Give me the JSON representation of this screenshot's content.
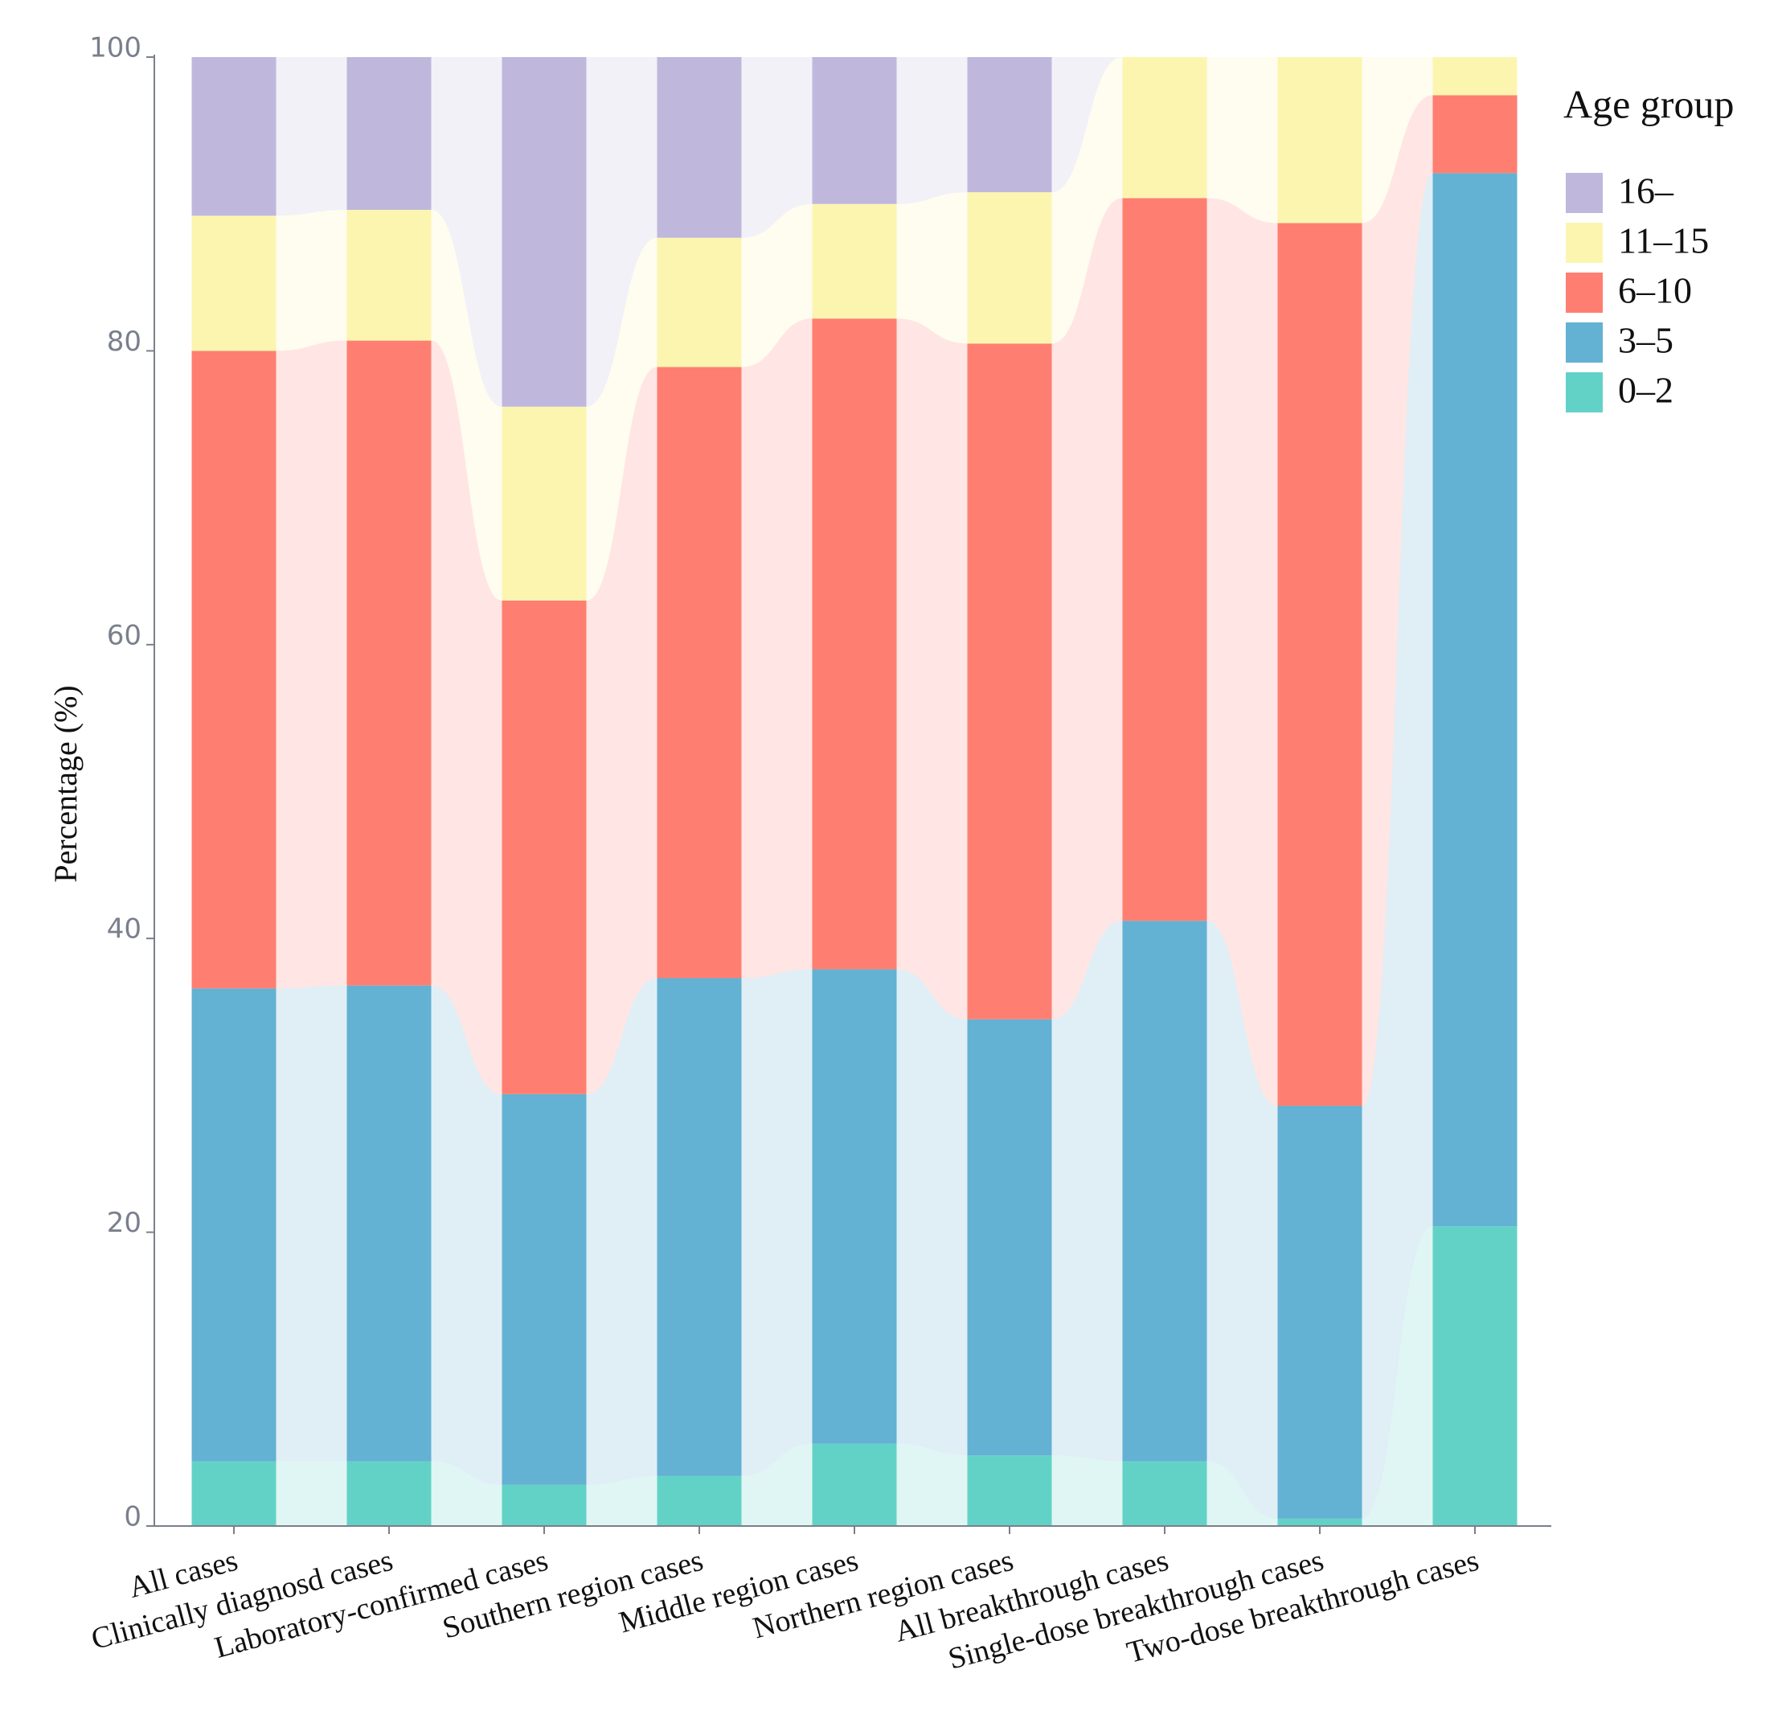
{
  "chart_data": {
    "type": "stacked_bar_flow",
    "y_label": "Percentage (%)",
    "legend_title": "Age group",
    "categories": [
      "All cases",
      "Clinically diagnosd cases",
      "Laboratory-confirmed cases",
      "Southern region cases",
      "Middle region cases",
      "Northern region cases",
      "All breakthrough cases",
      "Single-dose breakthrough cases",
      "Two-dose breakthrough cases"
    ],
    "series": [
      {
        "name": "0–2",
        "color": "#63d2c6",
        "values": [
          4.4,
          4.4,
          2.8,
          3.4,
          5.6,
          4.8,
          4.4,
          0.5,
          20.4
        ]
      },
      {
        "name": "3–5",
        "color": "#63b1d3",
        "values": [
          32.2,
          32.4,
          26.6,
          33.9,
          32.3,
          29.7,
          36.8,
          28.1,
          71.7
        ]
      },
      {
        "name": "6–10",
        "color": "#fe7f71",
        "values": [
          43.4,
          43.9,
          33.6,
          41.6,
          44.3,
          46.0,
          49.2,
          60.1,
          5.3
        ]
      },
      {
        "name": "11–15",
        "color": "#fcf5b0",
        "values": [
          9.2,
          8.9,
          13.2,
          8.8,
          7.8,
          10.3,
          9.6,
          11.3,
          2.6
        ]
      },
      {
        "name": "16–",
        "color": "#bfb8dc",
        "values": [
          10.8,
          10.4,
          23.8,
          12.3,
          10.0,
          9.2,
          0,
          0,
          0
        ]
      }
    ],
    "ylim": [
      0,
      100
    ],
    "yticks": [
      0,
      20,
      40,
      60,
      80,
      100
    ]
  }
}
